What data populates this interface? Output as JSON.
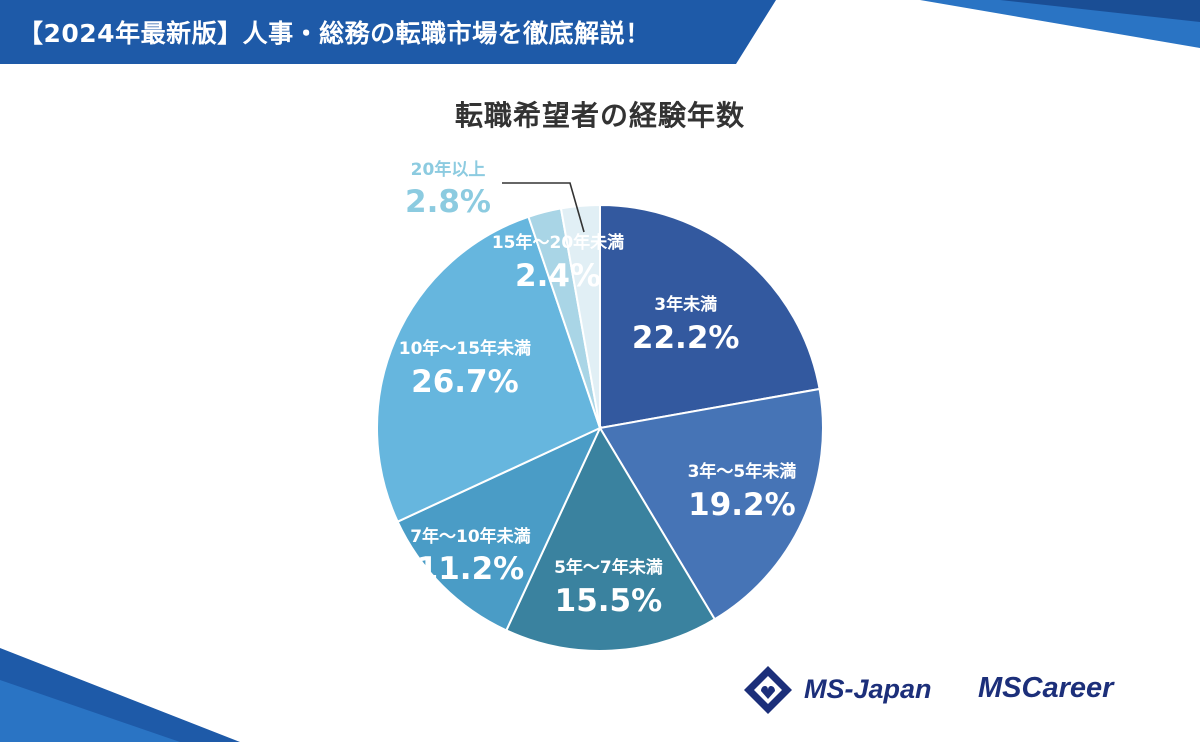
{
  "banner": {
    "text": "【2024年最新版】人事・総務の転職市場を徹底解説！"
  },
  "logos": {
    "ms_japan": "MS-Japan",
    "ms_career": "MSCareer"
  },
  "colors": {
    "brand": "#1e5aa8",
    "brand_dark": "#1c2f7a"
  },
  "chart_data": {
    "type": "pie",
    "title": "転職希望者の経験年数",
    "categories": [
      "3年未満",
      "3年～5年未満",
      "5年～7年未満",
      "7年～10年未満",
      "10年～15年未満",
      "15年～20年未満",
      "20年以上"
    ],
    "values": [
      22.2,
      19.2,
      15.5,
      11.2,
      26.7,
      2.4,
      2.8
    ],
    "value_labels": [
      "22.2%",
      "19.2%",
      "15.5%",
      "11.2%",
      "26.7%",
      "2.4%",
      "2.8%"
    ],
    "colors": [
      "#33599f",
      "#4674b6",
      "#3a829f",
      "#4a9cc6",
      "#66b6de",
      "#a9d5e6",
      "#e1eff5"
    ],
    "start_angle_deg": 0,
    "direction": "clockwise",
    "legend": "none"
  }
}
